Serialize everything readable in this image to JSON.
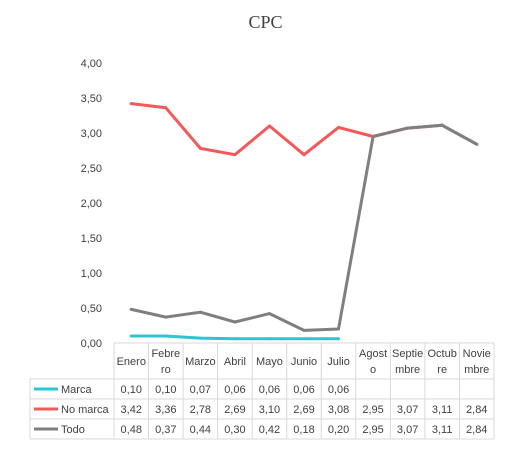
{
  "chart_data": {
    "type": "line",
    "title": "CPC",
    "categories": [
      "Enero",
      "Febrero",
      "Marzo",
      "Abril",
      "Mayo",
      "Junio",
      "Julio",
      "Agosto",
      "Septiembre",
      "Octubre",
      "Noviembre"
    ],
    "category_display": [
      [
        "Enero"
      ],
      [
        "Febre",
        "ro"
      ],
      [
        "Marzo"
      ],
      [
        "Abril"
      ],
      [
        "Mayo"
      ],
      [
        "Junio"
      ],
      [
        "Julio"
      ],
      [
        "Agost",
        "o"
      ],
      [
        "Septie",
        "mbre"
      ],
      [
        "Octub",
        "re"
      ],
      [
        "Novie",
        "mbre"
      ]
    ],
    "ylim": [
      0,
      4
    ],
    "yticks": [
      "0,00",
      "0,50",
      "1,00",
      "1,50",
      "2,00",
      "2,50",
      "3,00",
      "3,50",
      "4,00"
    ],
    "legend_placement": "data table below chart",
    "grid": false,
    "series": [
      {
        "name": "Marca",
        "color": "#2ec4d0",
        "values": [
          0.1,
          0.1,
          0.07,
          0.06,
          0.06,
          0.06,
          0.06,
          null,
          null,
          null,
          null
        ],
        "labels": [
          "0,10",
          "0,10",
          "0,07",
          "0,06",
          "0,06",
          "0,06",
          "0,06",
          "",
          "",
          "",
          ""
        ]
      },
      {
        "name": "No marca",
        "color": "#f4595a",
        "values": [
          3.42,
          3.36,
          2.78,
          2.69,
          3.1,
          2.69,
          3.08,
          2.95,
          3.07,
          3.11,
          2.84
        ],
        "labels": [
          "3,42",
          "3,36",
          "2,78",
          "2,69",
          "3,10",
          "2,69",
          "3,08",
          "2,95",
          "3,07",
          "3,11",
          "2,84"
        ]
      },
      {
        "name": "Todo",
        "color": "#7f7f7f",
        "values": [
          0.48,
          0.37,
          0.44,
          0.3,
          0.42,
          0.18,
          0.2,
          2.95,
          3.07,
          3.11,
          2.84
        ],
        "labels": [
          "0,48",
          "0,37",
          "0,44",
          "0,30",
          "0,42",
          "0,18",
          "0,20",
          "2,95",
          "3,07",
          "3,11",
          "2,84"
        ]
      }
    ]
  }
}
